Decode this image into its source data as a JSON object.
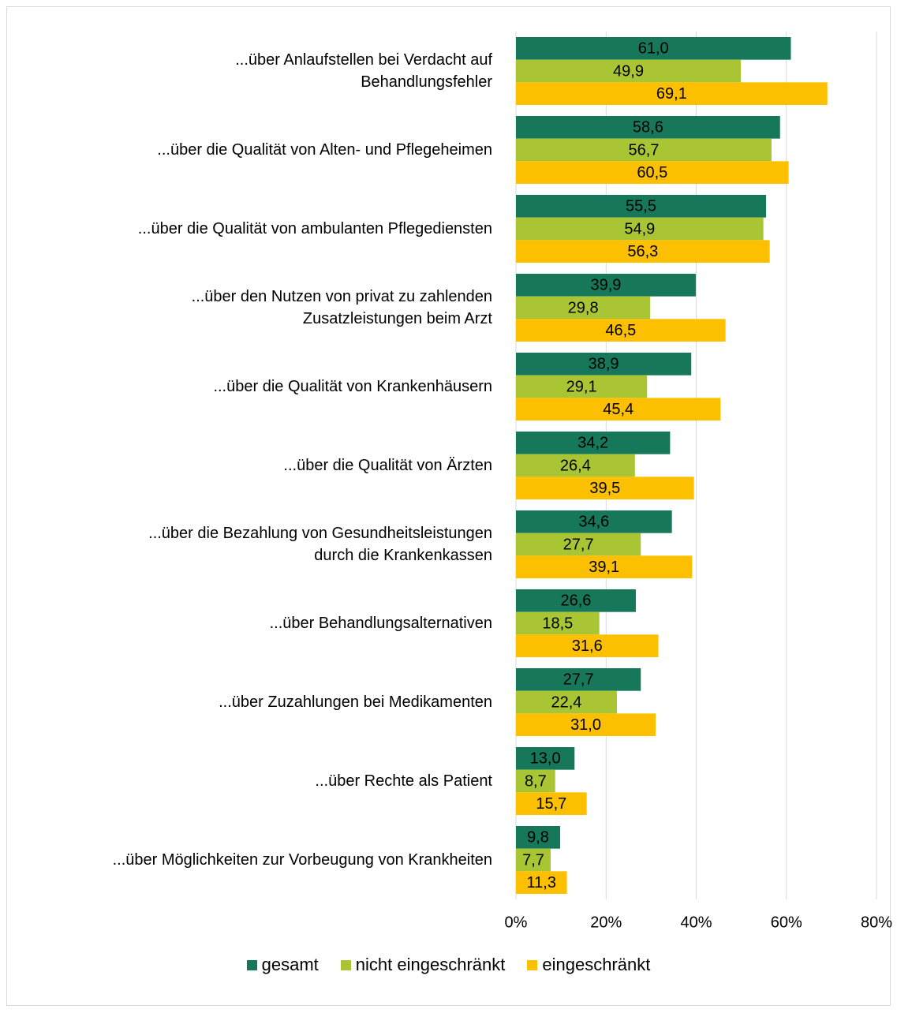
{
  "chart_data": {
    "type": "hbar",
    "categories": [
      "...über Anlaufstellen bei Verdacht auf\nBehandlungsfehler",
      "...über die Qualität von Alten- und Pflegeheimen",
      "...über die Qualität von ambulanten Pflegediensten",
      "...über den Nutzen von privat zu zahlenden\nZusatzleistungen beim Arzt",
      "...über die Qualität von Krankenhäusern",
      "...über die Qualität von Ärzten",
      "...über die Bezahlung von Gesundheitsleistungen\ndurch die Krankenkassen",
      "...über Behandlungsalternativen",
      "...über Zuzahlungen bei Medikamenten",
      "...über Rechte als Patient",
      "...über Möglichkeiten zur Vorbeugung von Krankheiten"
    ],
    "series": [
      {
        "name": "gesamt",
        "color": "#17775a",
        "values": [
          61.0,
          58.6,
          55.5,
          39.9,
          38.9,
          34.2,
          34.6,
          26.6,
          27.7,
          13.0,
          9.8
        ],
        "value_labels": [
          "61,0",
          "58,6",
          "55,5",
          "39,9",
          "38,9",
          "34,2",
          "34,6",
          "26,6",
          "27,7",
          "13,0",
          "9,8"
        ]
      },
      {
        "name": "nicht eingeschränkt",
        "color": "#a9c533",
        "values": [
          49.9,
          56.7,
          54.9,
          29.8,
          29.1,
          26.4,
          27.7,
          18.5,
          22.4,
          8.7,
          7.7
        ],
        "value_labels": [
          "49,9",
          "56,7",
          "54,9",
          "29,8",
          "29,1",
          "26,4",
          "27,7",
          "18,5",
          "22,4",
          "8,7",
          "7,7"
        ]
      },
      {
        "name": "eingeschränkt",
        "color": "#fcc000",
        "values": [
          69.1,
          60.5,
          56.3,
          46.5,
          45.4,
          39.5,
          39.1,
          31.6,
          31.0,
          15.7,
          11.3
        ],
        "value_labels": [
          "69,1",
          "60,5",
          "56,3",
          "46,5",
          "45,4",
          "39,5",
          "39,1",
          "31,6",
          "31,0",
          "15,7",
          "11,3"
        ]
      }
    ],
    "xlim": [
      0,
      80
    ],
    "xticks": [
      {
        "value": 0,
        "label": "0%"
      },
      {
        "value": 20,
        "label": "20%"
      },
      {
        "value": 40,
        "label": "40%"
      },
      {
        "value": 60,
        "label": "60%"
      },
      {
        "value": 80,
        "label": "80%"
      }
    ],
    "grid": true,
    "legend": "bottom"
  }
}
